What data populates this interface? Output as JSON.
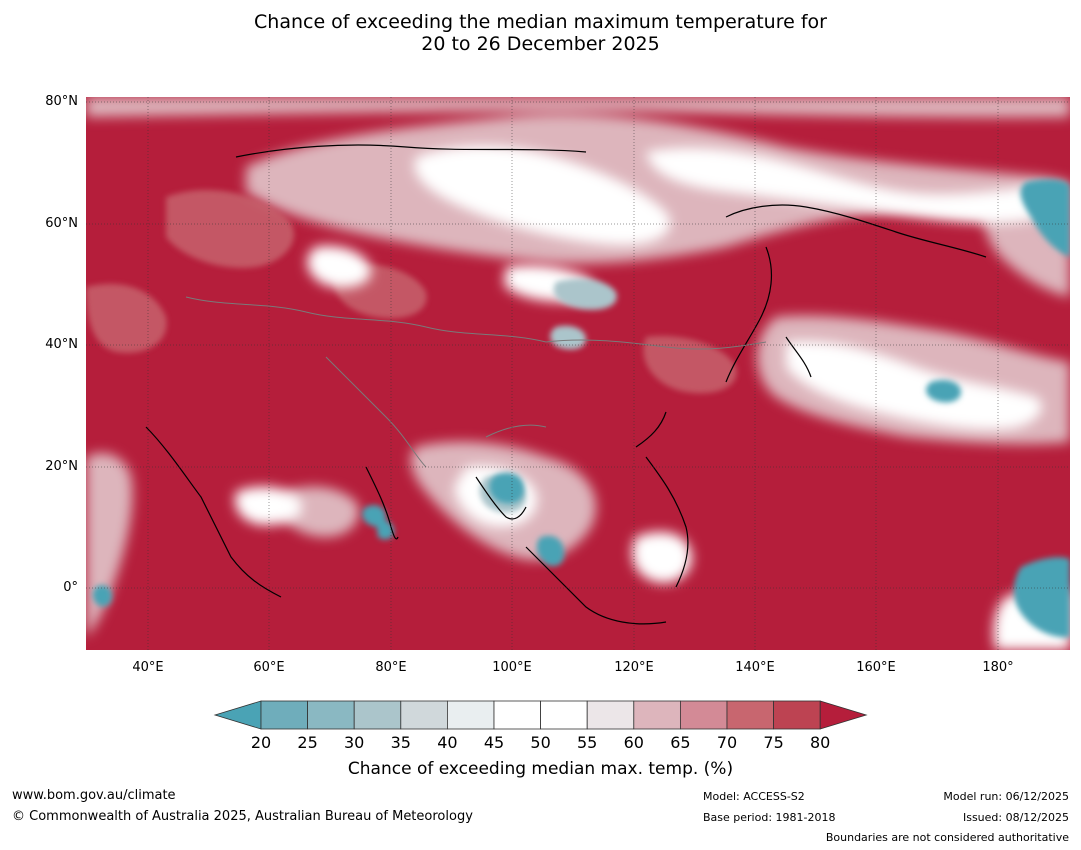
{
  "title_line1": "Chance of exceeding the median maximum temperature for",
  "title_line2": "20 to 26 December 2025",
  "lat_labels": [
    "80°N",
    "60°N",
    "40°N",
    "20°N",
    "0°"
  ],
  "lon_labels": [
    "40°E",
    "60°E",
    "80°E",
    "100°E",
    "120°E",
    "140°E",
    "160°E",
    "180°"
  ],
  "colorbar": {
    "ticks": [
      "20",
      "25",
      "30",
      "35",
      "40",
      "45",
      "50",
      "55",
      "60",
      "65",
      "70",
      "75",
      "80"
    ],
    "colors": [
      "#4aa3b5",
      "#6fadbb",
      "#8ab8c2",
      "#abc5cb",
      "#d0d8db",
      "#e9eef0",
      "#ffffff",
      "#ffffff",
      "#ece6e8",
      "#ddb5bc",
      "#d38a96",
      "#c8666f",
      "#bd4352",
      "#b51e3b"
    ],
    "title": "Chance of exceeding median max. temp. (%)"
  },
  "map_colors": {
    "warm_dark": "#b51e3b",
    "warm_mid": "#c8666f",
    "warm_light": "#ddb5bc",
    "neutral": "#ffffff",
    "cool_light": "#abc5cb",
    "cool_dark": "#4aa3b5"
  },
  "footer": {
    "website": "www.bom.gov.au/climate",
    "copyright": "© Commonwealth of Australia 2025, Australian Bureau of Meteorology",
    "model": "Model: ACCESS-S2",
    "base_period": "Base period: 1981-2018",
    "model_run": "Model run: 06/12/2025",
    "issued": "Issued: 08/12/2025",
    "disclaimer": "Boundaries are not considered authoritative"
  }
}
